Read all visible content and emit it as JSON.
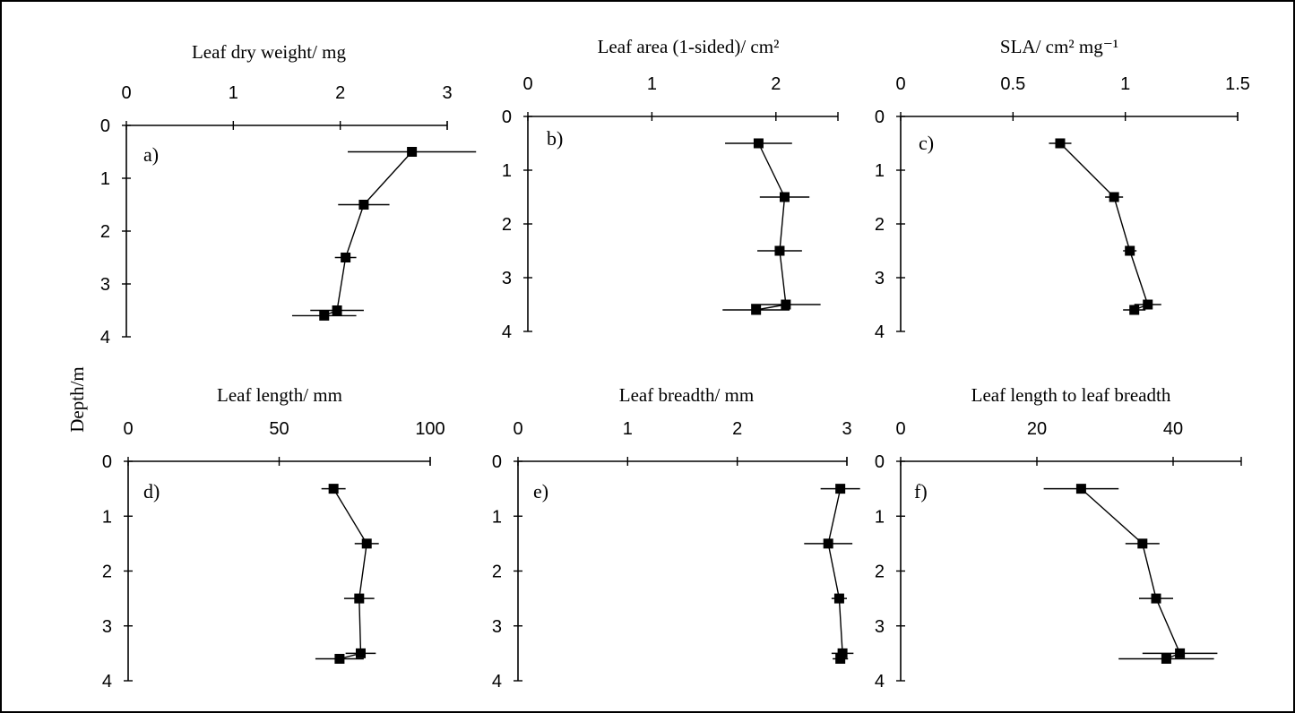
{
  "figure": {
    "y_axis_title": "Depth/m"
  },
  "chart_data": [
    {
      "type": "line",
      "panel": "a)",
      "title": "Leaf dry weight/ mg",
      "x_ticks": [
        "0",
        "1",
        "2",
        "3"
      ],
      "y_ticks": [
        "0",
        "1",
        "2",
        "3",
        "4"
      ],
      "xlim": [
        0,
        3
      ],
      "ylim": [
        0,
        4
      ],
      "x_axis_position": "top",
      "y_inverted": true,
      "points": [
        {
          "depth": 0.5,
          "value": 2.67,
          "err": 0.6
        },
        {
          "depth": 1.5,
          "value": 2.22,
          "err": 0.24
        },
        {
          "depth": 2.5,
          "value": 2.05,
          "err": 0.1
        },
        {
          "depth": 3.5,
          "value": 1.97,
          "err": 0.25
        },
        {
          "depth": 3.6,
          "value": 1.85,
          "err": 0.3
        }
      ]
    },
    {
      "type": "line",
      "panel": "b)",
      "title": "Leaf area (1-sided)/ cm²",
      "x_ticks": [
        "0",
        "1",
        "2"
      ],
      "y_ticks": [
        "0",
        "1",
        "2",
        "3",
        "4"
      ],
      "xlim": [
        0,
        2.5
      ],
      "ylim": [
        0,
        4
      ],
      "x_axis_position": "top",
      "y_inverted": true,
      "points": [
        {
          "depth": 0.5,
          "value": 1.86,
          "err": 0.27
        },
        {
          "depth": 1.5,
          "value": 2.07,
          "err": 0.2
        },
        {
          "depth": 2.5,
          "value": 2.03,
          "err": 0.18
        },
        {
          "depth": 3.5,
          "value": 2.08,
          "err": 0.28
        },
        {
          "depth": 3.6,
          "value": 1.84,
          "err": 0.27
        }
      ]
    },
    {
      "type": "line",
      "panel": "c)",
      "title": "SLA/ cm² mg⁻¹",
      "x_ticks": [
        "0",
        "0.5",
        "1",
        "1.5"
      ],
      "y_ticks": [
        "0",
        "1",
        "2",
        "3",
        "4"
      ],
      "xlim": [
        0,
        1.5
      ],
      "ylim": [
        0,
        4
      ],
      "x_axis_position": "top",
      "y_inverted": true,
      "points": [
        {
          "depth": 0.5,
          "value": 0.71,
          "err": 0.05
        },
        {
          "depth": 1.5,
          "value": 0.95,
          "err": 0.04
        },
        {
          "depth": 2.5,
          "value": 1.02,
          "err": 0.03
        },
        {
          "depth": 3.5,
          "value": 1.1,
          "err": 0.06
        },
        {
          "depth": 3.6,
          "value": 1.04,
          "err": 0.05
        }
      ]
    },
    {
      "type": "line",
      "panel": "d)",
      "title": "Leaf length/ mm",
      "x_ticks": [
        "0",
        "50",
        "100"
      ],
      "y_ticks": [
        "0",
        "1",
        "2",
        "3",
        "4"
      ],
      "xlim": [
        0,
        100
      ],
      "ylim": [
        0,
        4
      ],
      "x_axis_position": "top",
      "y_inverted": true,
      "points": [
        {
          "depth": 0.5,
          "value": 68,
          "err": 4
        },
        {
          "depth": 1.5,
          "value": 79,
          "err": 4
        },
        {
          "depth": 2.5,
          "value": 76.5,
          "err": 5
        },
        {
          "depth": 3.5,
          "value": 77,
          "err": 5
        },
        {
          "depth": 3.6,
          "value": 70,
          "err": 8
        }
      ]
    },
    {
      "type": "line",
      "panel": "e)",
      "title": "Leaf breadth/ mm",
      "x_ticks": [
        "0",
        "1",
        "2",
        "3"
      ],
      "y_ticks": [
        "0",
        "1",
        "2",
        "3",
        "4"
      ],
      "xlim": [
        0,
        3
      ],
      "ylim": [
        0,
        4
      ],
      "x_axis_position": "top",
      "y_inverted": true,
      "points": [
        {
          "depth": 0.5,
          "value": 2.94,
          "err": 0.18
        },
        {
          "depth": 1.5,
          "value": 2.83,
          "err": 0.22
        },
        {
          "depth": 2.5,
          "value": 2.93,
          "err": 0.07
        },
        {
          "depth": 3.5,
          "value": 2.96,
          "err": 0.1
        },
        {
          "depth": 3.6,
          "value": 2.94,
          "err": 0.07
        }
      ]
    },
    {
      "type": "line",
      "panel": "f)",
      "title": "Leaf length to leaf breadth",
      "x_ticks": [
        "0",
        "20",
        "40"
      ],
      "y_ticks": [
        "0",
        "1",
        "2",
        "3",
        "4"
      ],
      "xlim": [
        0,
        50
      ],
      "ylim": [
        0,
        4
      ],
      "x_axis_position": "top",
      "y_inverted": true,
      "points": [
        {
          "depth": 0.5,
          "value": 26.5,
          "err": 5.5
        },
        {
          "depth": 1.5,
          "value": 35.5,
          "err": 2.5
        },
        {
          "depth": 2.5,
          "value": 37.5,
          "err": 2.5
        },
        {
          "depth": 3.5,
          "value": 41,
          "err": 5.5
        },
        {
          "depth": 3.6,
          "value": 39,
          "err": 7
        }
      ]
    }
  ]
}
